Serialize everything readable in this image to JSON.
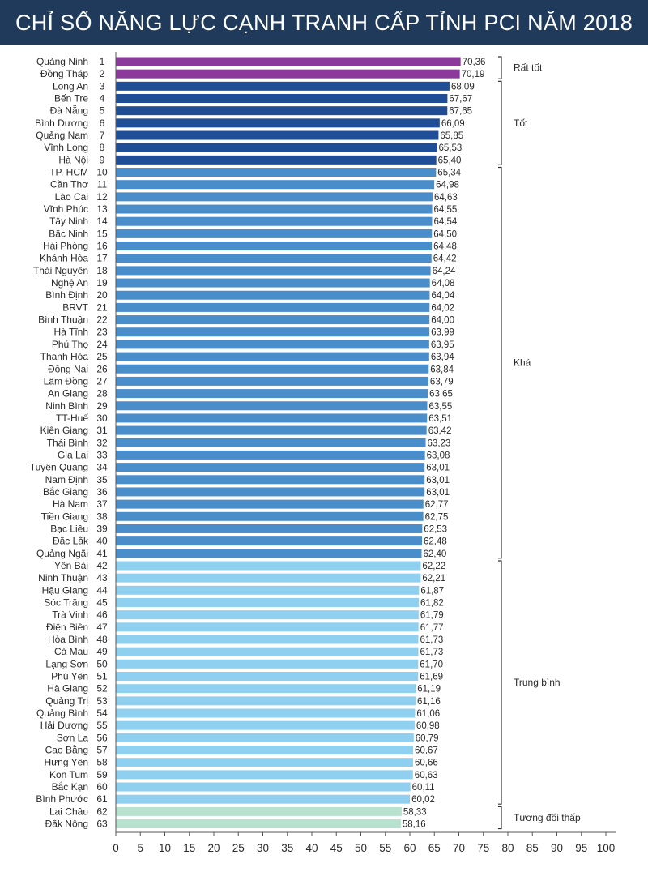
{
  "header": {
    "title": "CHỈ SỐ NĂNG LỰC CẠNH TRANH CẤP TỈNH PCI NĂM 2018"
  },
  "colors": {
    "title_bg": "#1f3a5b",
    "very_good": "#8b3a9c",
    "good": "#1f4e96",
    "fairly_good": "#4a8dcb",
    "average": "#8fd0f0",
    "relatively_low": "#b8e2d0",
    "axis": "#555555",
    "text": "#2a2a2a"
  },
  "chart_data": {
    "type": "bar",
    "orientation": "horizontal",
    "title": "CHỈ SỐ NĂNG LỰC CẠNH TRANH CẤP TỈNH PCI NĂM 2018",
    "xlabel": "",
    "ylabel": "",
    "xlim": [
      0,
      100
    ],
    "x_ticks": [
      "0",
      "5",
      "10",
      "15",
      "20",
      "25",
      "30",
      "35",
      "40",
      "45",
      "50",
      "55",
      "60",
      "65",
      "70",
      "75",
      "80",
      "85",
      "90",
      "95",
      "100"
    ],
    "grid": false,
    "categories": [
      "Quảng Ninh",
      "Đồng Tháp",
      "Long An",
      "Bến Tre",
      "Đà Nẵng",
      "Bình Dương",
      "Quảng Nam",
      "Vĩnh Long",
      "Hà Nội",
      "TP. HCM",
      "Cần Thơ",
      "Lào Cai",
      "Vĩnh Phúc",
      "Tây Ninh",
      "Bắc Ninh",
      "Hải Phòng",
      "Khánh Hòa",
      "Thái Nguyên",
      "Nghệ An",
      "Bình Định",
      "BRVT",
      "Bình Thuận",
      "Hà Tĩnh",
      "Phú Thọ",
      "Thanh Hóa",
      "Đồng Nai",
      "Lâm Đồng",
      "An Giang",
      "Ninh Bình",
      "TT-Huế",
      "Kiên Giang",
      "Thái Bình",
      "Gia Lai",
      "Tuyên Quang",
      "Nam Định",
      "Bắc Giang",
      "Hà Nam",
      "Tiền Giang",
      "Bạc Liêu",
      "Đắc Lắk",
      "Quảng Ngãi",
      "Yên Bái",
      "Ninh Thuận",
      "Hậu Giang",
      "Sóc Trăng",
      "Trà Vinh",
      "Điện Biên",
      "Hòa Bình",
      "Cà Mau",
      "Lạng Sơn",
      "Phú Yên",
      "Hà Giang",
      "Quảng Trị",
      "Quảng Bình",
      "Hải Dương",
      "Sơn La",
      "Cao Bằng",
      "Hưng Yên",
      "Kon Tum",
      "Bắc Kạn",
      "Bình Phước",
      "Lai Châu",
      "Đắk Nông"
    ],
    "ranks": [
      "1",
      "2",
      "3",
      "4",
      "5",
      "6",
      "7",
      "8",
      "9",
      "10",
      "11",
      "12",
      "13",
      "14",
      "15",
      "16",
      "17",
      "18",
      "19",
      "20",
      "21",
      "22",
      "23",
      "24",
      "25",
      "26",
      "27",
      "28",
      "29",
      "30",
      "31",
      "32",
      "33",
      "34",
      "35",
      "36",
      "37",
      "38",
      "39",
      "40",
      "41",
      "42",
      "43",
      "44",
      "45",
      "46",
      "47",
      "48",
      "49",
      "50",
      "51",
      "52",
      "53",
      "54",
      "55",
      "56",
      "57",
      "58",
      "59",
      "60",
      "61",
      "62",
      "63"
    ],
    "values": [
      70.36,
      70.19,
      68.09,
      67.67,
      67.65,
      66.09,
      65.85,
      65.53,
      65.4,
      65.34,
      64.98,
      64.63,
      64.55,
      64.54,
      64.5,
      64.48,
      64.42,
      64.24,
      64.08,
      64.04,
      64.02,
      64.0,
      63.99,
      63.95,
      63.94,
      63.84,
      63.79,
      63.65,
      63.55,
      63.51,
      63.42,
      63.23,
      63.08,
      63.01,
      63.01,
      63.01,
      62.77,
      62.75,
      62.53,
      62.48,
      62.4,
      62.22,
      62.21,
      61.87,
      61.82,
      61.79,
      61.77,
      61.73,
      61.73,
      61.7,
      61.69,
      61.19,
      61.16,
      61.06,
      60.98,
      60.79,
      60.67,
      60.66,
      60.63,
      60.11,
      60.02,
      58.33,
      58.16
    ],
    "value_labels": [
      "70,36",
      "70,19",
      "68,09",
      "67,67",
      "67,65",
      "66,09",
      "65,85",
      "65,53",
      "65,40",
      "65,34",
      "64,98",
      "64,63",
      "64,55",
      "64,54",
      "64,50",
      "64,48",
      "64,42",
      "64,24",
      "64,08",
      "64,04",
      "64,02",
      "64,00",
      "63,99",
      "63,95",
      "63,94",
      "63,84",
      "63,79",
      "63,65",
      "63,55",
      "63,51",
      "63,42",
      "63,23",
      "63,08",
      "63,01",
      "63,01",
      "63,01",
      "62,77",
      "62,75",
      "62,53",
      "62,48",
      "62,40",
      "62,22",
      "62,21",
      "61,87",
      "61,82",
      "61,79",
      "61,77",
      "61,73",
      "61,73",
      "61,70",
      "61,69",
      "61,19",
      "61,16",
      "61,06",
      "60,98",
      "60,79",
      "60,67",
      "60,66",
      "60,63",
      "60,11",
      "60,02",
      "58,33",
      "58,16"
    ],
    "groups": [
      {
        "label": "Rất tốt",
        "start": 0,
        "end": 1,
        "color_key": "very_good"
      },
      {
        "label": "Tốt",
        "start": 2,
        "end": 8,
        "color_key": "good"
      },
      {
        "label": "Khá",
        "start": 9,
        "end": 40,
        "color_key": "fairly_good"
      },
      {
        "label": "Trung bình",
        "start": 41,
        "end": 60,
        "color_key": "average"
      },
      {
        "label": "Tương đối thấp",
        "start": 61,
        "end": 62,
        "color_key": "relatively_low"
      }
    ]
  }
}
